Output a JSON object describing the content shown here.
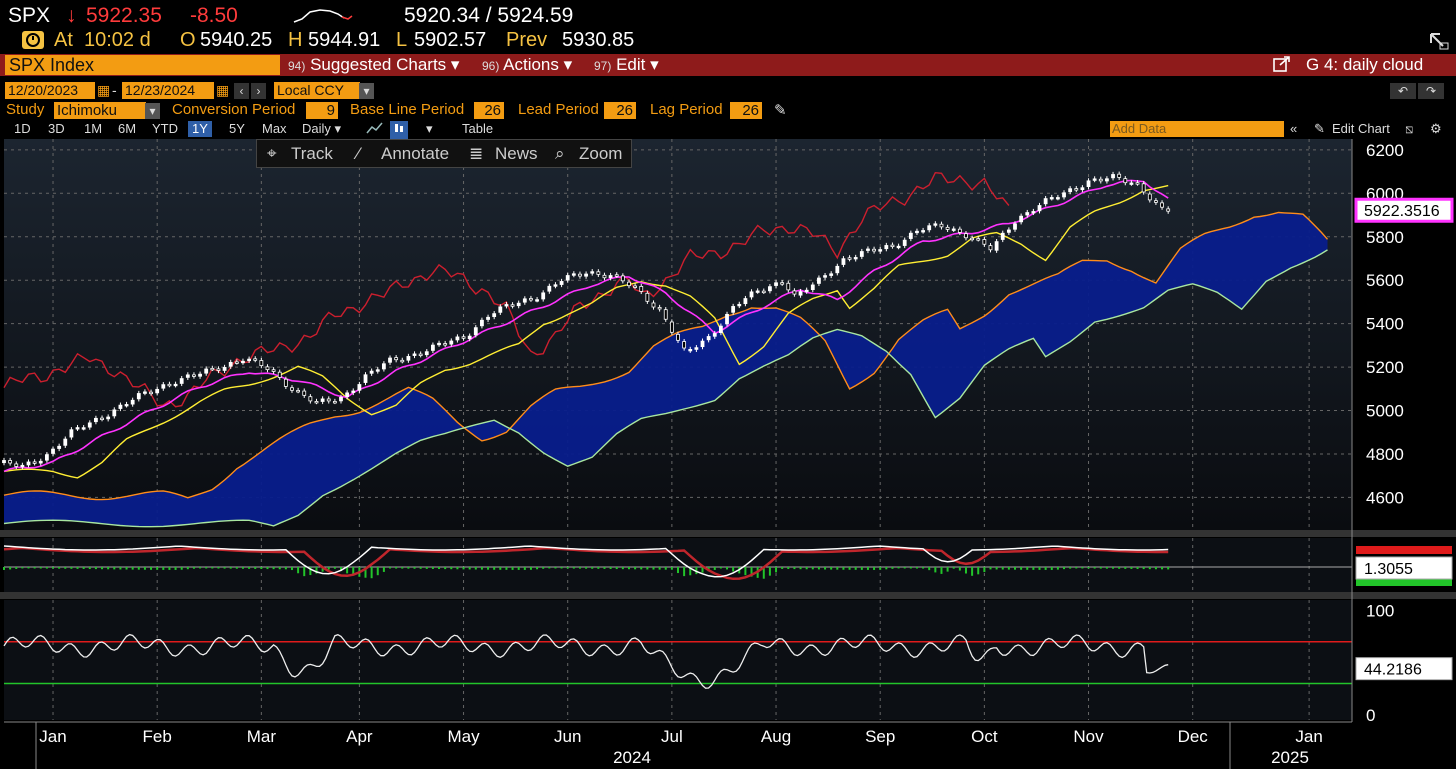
{
  "header": {
    "ticker": "SPX",
    "arrow": "↓",
    "last": "5922.35",
    "change": "-8.50",
    "bid_ask": "5920.34 / 5924.59",
    "at_label": "At",
    "at_time": "10:02 d",
    "open_label": "O",
    "open": "5940.25",
    "high_label": "H",
    "high": "5944.91",
    "low_label": "L",
    "low": "5902.57",
    "prev_label": "Prev",
    "prev": "5930.85"
  },
  "menubar": {
    "security": "SPX Index",
    "suggested_num": "94)",
    "suggested": "Suggested Charts ▾",
    "actions_num": "96)",
    "actions": "Actions ▾",
    "edit_num": "97)",
    "edit": "Edit ▾",
    "chart_name": "G 4: daily cloud"
  },
  "daterange": {
    "start": "12/20/2023",
    "sep": "-",
    "end": "12/23/2024",
    "currency": "Local CCY"
  },
  "study": {
    "label": "Study",
    "name": "Ichimoku",
    "conversion_label": "Conversion Period",
    "conversion": "9",
    "base_label": "Base Line Period",
    "base": "26",
    "lead_label": "Lead Period",
    "lead": "26",
    "lag_label": "Lag Period",
    "lag": "26"
  },
  "periods": [
    "1D",
    "3D",
    "1M",
    "6M",
    "YTD",
    "1Y",
    "5Y",
    "Max"
  ],
  "selected_period": "1Y",
  "frequency": "Daily ▾",
  "table_label": "Table",
  "add_data_placeholder": "Add Data",
  "edit_chart_label": "Edit Chart",
  "tools": {
    "track": "Track",
    "annotate": "Annotate",
    "news": "News",
    "zoom": "Zoom"
  },
  "colors": {
    "price": "#ffffff",
    "conversion_line": "#ff33ff",
    "base_line": "#ffee33",
    "lead_a": "#ff8c1a",
    "lead_b": "#a8e6a0",
    "lagging": "#cc1f2e",
    "cloud": "#081e8c",
    "accent": "#f39c12",
    "menubar": "#8e1b1b"
  },
  "chart_data": [
    {
      "type": "line",
      "panel": "price",
      "study": "Ichimoku",
      "yticks": [
        4600,
        4800,
        5000,
        5200,
        5400,
        5600,
        5800,
        6000,
        6200
      ],
      "ylim": [
        4450,
        6250
      ],
      "x_months": [
        "Jan",
        "Feb",
        "Mar",
        "Apr",
        "May",
        "Jun",
        "Jul",
        "Aug",
        "Sep",
        "Oct",
        "Nov",
        "Dec",
        "Jan"
      ],
      "x_years": [
        "2024",
        "2025"
      ],
      "last_value_label": "5922.3516",
      "series": [
        {
          "key": "price",
          "points": [
            [
              0,
              4760
            ],
            [
              4,
              4740
            ],
            [
              8,
              4800
            ],
            [
              12,
              4900
            ],
            [
              16,
              4960
            ],
            [
              20,
              5020
            ],
            [
              24,
              5080
            ],
            [
              28,
              5130
            ],
            [
              32,
              5160
            ],
            [
              36,
              5200
            ],
            [
              40,
              5240
            ],
            [
              44,
              5190
            ],
            [
              48,
              5100
            ],
            [
              52,
              5030
            ],
            [
              56,
              5060
            ],
            [
              60,
              5160
            ],
            [
              64,
              5230
            ],
            [
              68,
              5260
            ],
            [
              72,
              5300
            ],
            [
              76,
              5340
            ],
            [
              80,
              5440
            ],
            [
              84,
              5490
            ],
            [
              88,
              5530
            ],
            [
              92,
              5600
            ],
            [
              96,
              5640
            ],
            [
              100,
              5620
            ],
            [
              104,
              5560
            ],
            [
              108,
              5460
            ],
            [
              112,
              5260
            ],
            [
              116,
              5340
            ],
            [
              120,
              5480
            ],
            [
              124,
              5550
            ],
            [
              128,
              5600
            ],
            [
              130,
              5520
            ],
            [
              134,
              5600
            ],
            [
              138,
              5700
            ],
            [
              142,
              5730
            ],
            [
              146,
              5760
            ],
            [
              150,
              5830
            ],
            [
              154,
              5850
            ],
            [
              158,
              5810
            ],
            [
              162,
              5740
            ],
            [
              166,
              5880
            ],
            [
              170,
              5950
            ],
            [
              174,
              6000
            ],
            [
              178,
              6060
            ],
            [
              182,
              6070
            ],
            [
              186,
              6040
            ],
            [
              190,
              5920
            ]
          ]
        },
        {
          "key": "conversion",
          "points": [
            [
              0,
              4720
            ],
            [
              8,
              4760
            ],
            [
              16,
              4880
            ],
            [
              24,
              5000
            ],
            [
              32,
              5110
            ],
            [
              40,
              5180
            ],
            [
              48,
              5140
            ],
            [
              56,
              5060
            ],
            [
              64,
              5180
            ],
            [
              72,
              5280
            ],
            [
              80,
              5380
            ],
            [
              88,
              5480
            ],
            [
              96,
              5580
            ],
            [
              102,
              5620
            ],
            [
              108,
              5540
            ],
            [
              116,
              5360
            ],
            [
              124,
              5480
            ],
            [
              130,
              5560
            ],
            [
              136,
              5510
            ],
            [
              142,
              5640
            ],
            [
              150,
              5780
            ],
            [
              158,
              5820
            ],
            [
              164,
              5860
            ],
            [
              172,
              5950
            ],
            [
              180,
              6040
            ],
            [
              186,
              6060
            ],
            [
              190,
              5970
            ]
          ]
        }
      ]
    },
    {
      "type": "line",
      "panel": "macd",
      "last_value_label": "1.3055"
    },
    {
      "type": "line",
      "panel": "rsi",
      "yticks": [
        0,
        100
      ],
      "ylim": [
        -5,
        110
      ],
      "overbought": 70,
      "oversold": 30,
      "last_value_label": "44.2186"
    }
  ]
}
